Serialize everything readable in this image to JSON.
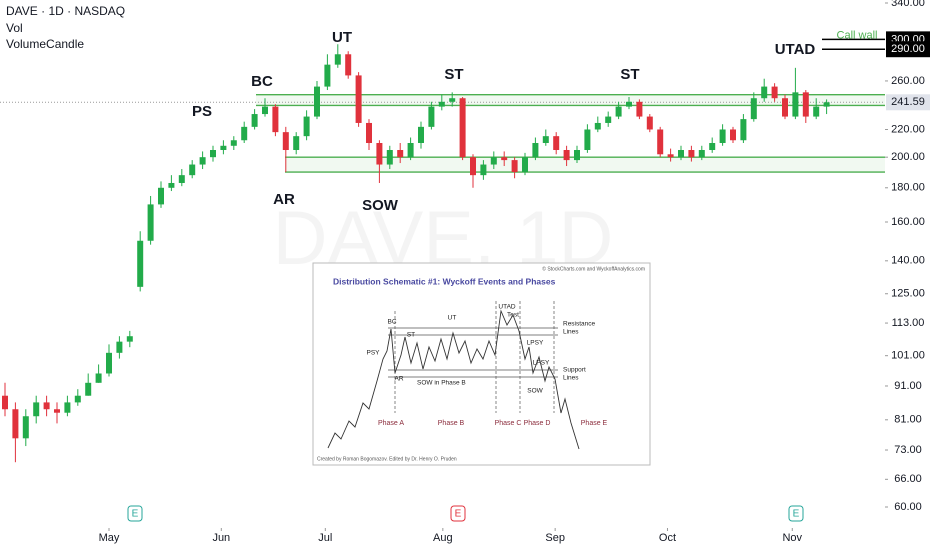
{
  "chart_data": {
    "type": "candlestick",
    "legend_lines": [
      "DAVE · 1D · NASDAQ",
      "Vol",
      "VolumeCandle"
    ],
    "watermark": "DAVE, 1D",
    "log_scale": true,
    "ylim": [
      60,
      340
    ],
    "yticks": [
      {
        "value": 340,
        "label": "340.00"
      },
      {
        "value": 260,
        "label": "260.00"
      },
      {
        "value": 220,
        "label": "220.00"
      },
      {
        "value": 200,
        "label": "200.00"
      },
      {
        "value": 180,
        "label": "180.00"
      },
      {
        "value": 160,
        "label": "160.00"
      },
      {
        "value": 140,
        "label": "140.00"
      },
      {
        "value": 125,
        "label": "125.00"
      },
      {
        "value": 113,
        "label": "113.00"
      },
      {
        "value": 101,
        "label": "101.00"
      },
      {
        "value": 91,
        "label": "91.00"
      },
      {
        "value": 81,
        "label": "81.00"
      },
      {
        "value": 73,
        "label": "73.00"
      },
      {
        "value": 66,
        "label": "66.00"
      },
      {
        "value": 60,
        "label": "60.00"
      }
    ],
    "xticks": [
      {
        "value": 10,
        "label": "May"
      },
      {
        "value": 20.8,
        "label": "Jun"
      },
      {
        "value": 30.8,
        "label": "Jul"
      },
      {
        "value": 42.1,
        "label": "Aug"
      },
      {
        "value": 52.9,
        "label": "Sep"
      },
      {
        "value": 63.7,
        "label": "Oct"
      },
      {
        "value": 75.7,
        "label": "Nov"
      }
    ],
    "up_color": "#22ab4a",
    "down_color": "#e0323c",
    "open": [
      88,
      84,
      76,
      82,
      86,
      84,
      83,
      86,
      88,
      92,
      95,
      102,
      106,
      128,
      150,
      170,
      180,
      183,
      188,
      195,
      200,
      205,
      208,
      212,
      222,
      232,
      238,
      218,
      205,
      215,
      230,
      255,
      275,
      285,
      265,
      225,
      210,
      195,
      205,
      200,
      210,
      222,
      238,
      242,
      245,
      200,
      188,
      195,
      200,
      198,
      190,
      200,
      210,
      215,
      205,
      198,
      205,
      220,
      225,
      230,
      238,
      242,
      230,
      220,
      202,
      200,
      205,
      200,
      205,
      210,
      220,
      212,
      228,
      245,
      255,
      245,
      230,
      250,
      230,
      238
    ],
    "high": [
      92,
      86,
      84,
      88,
      88,
      86,
      88,
      90,
      95,
      98,
      105,
      108,
      110,
      155,
      175,
      184,
      188,
      192,
      198,
      204,
      208,
      212,
      215,
      226,
      236,
      245,
      240,
      222,
      218,
      235,
      260,
      285,
      295,
      288,
      268,
      228,
      212,
      208,
      210,
      214,
      226,
      242,
      248,
      250,
      246,
      202,
      198,
      204,
      204,
      200,
      203,
      214,
      220,
      218,
      208,
      208,
      224,
      230,
      234,
      242,
      246,
      244,
      232,
      222,
      206,
      208,
      208,
      208,
      214,
      224,
      222,
      232,
      250,
      262,
      258,
      248,
      272,
      252,
      245,
      244
    ],
    "low": [
      82,
      70,
      74,
      80,
      82,
      80,
      82,
      85,
      88,
      92,
      94,
      100,
      104,
      126,
      148,
      168,
      178,
      181,
      186,
      192,
      197,
      202,
      205,
      210,
      220,
      230,
      215,
      190,
      202,
      212,
      228,
      252,
      272,
      262,
      222,
      205,
      183,
      192,
      196,
      198,
      206,
      220,
      235,
      238,
      198,
      180,
      185,
      192,
      194,
      186,
      188,
      198,
      208,
      202,
      194,
      196,
      203,
      218,
      222,
      228,
      236,
      228,
      218,
      200,
      197,
      198,
      197,
      198,
      203,
      208,
      210,
      210,
      226,
      242,
      242,
      228,
      228,
      225,
      228,
      232
    ],
    "close": [
      84,
      76,
      82,
      86,
      84,
      83,
      86,
      88,
      92,
      95,
      102,
      106,
      108,
      150,
      170,
      180,
      183,
      188,
      195,
      200,
      205,
      208,
      212,
      222,
      232,
      238,
      218,
      205,
      215,
      230,
      255,
      275,
      285,
      265,
      225,
      210,
      195,
      205,
      200,
      210,
      222,
      238,
      242,
      245,
      200,
      188,
      195,
      200,
      198,
      190,
      200,
      210,
      215,
      205,
      198,
      205,
      220,
      225,
      230,
      238,
      242,
      230,
      220,
      202,
      200,
      205,
      200,
      205,
      210,
      220,
      212,
      228,
      245,
      255,
      245,
      230,
      250,
      230,
      238,
      241.59
    ],
    "levels": [
      248,
      239,
      200,
      190
    ],
    "level_color": "#4caf50",
    "last_price": 241.59,
    "call_wall": {
      "label": "Call wall",
      "levels": [
        300,
        290
      ],
      "value_labels": [
        "300.00",
        "290.00"
      ]
    },
    "annotations": [
      "PS",
      "BC",
      "AR",
      "UT",
      "SOW",
      "ST",
      "ST",
      "UTAD"
    ],
    "earnings_markers": [
      "E",
      "E",
      "E"
    ]
  },
  "inset": {
    "title": "Distribution Schematic #1: Wyckoff Events and Phases",
    "credit": "© StockCharts.com and WyckoffAnalytics.com",
    "labels": [
      "BC",
      "UT",
      "UTAD",
      "Test",
      "ST",
      "PSY",
      "AR",
      "SOW in Phase B",
      "LPSY",
      "LPSY",
      "SOW"
    ],
    "line_labels": [
      "Resistance",
      "Lines",
      "Support",
      "Lines"
    ],
    "phases": [
      "Phase A",
      "Phase B",
      "Phase C",
      "Phase D",
      "Phase E"
    ],
    "footer": "Created by Roman Bogomazov. Edited by Dr. Henry O. Pruden"
  }
}
